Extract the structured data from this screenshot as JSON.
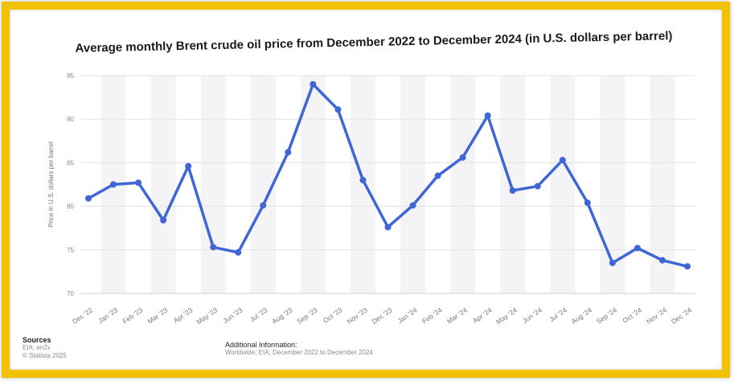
{
  "chart_data": {
    "type": "line",
    "title": "Average monthly Brent crude oil price from December 2022 to December 2024 (in U.S. dollars per barrel)",
    "ylabel": "Price in U.S. dollars per barrel",
    "xlabel": "",
    "ylim": [
      70,
      95
    ],
    "yticks": [
      70,
      75,
      80,
      85,
      90,
      95
    ],
    "grid": true,
    "color": "#3f66d6",
    "categories": [
      "Dec '22",
      "Jan '23",
      "Feb '23",
      "Mar '23",
      "Apr '23",
      "May '23",
      "Jun '23",
      "Jul '23",
      "Aug '23",
      "Sep '23",
      "Oct '23",
      "Nov '23",
      "Dec '23",
      "Jan '24",
      "Feb '24",
      "Mar '24",
      "Apr '24",
      "May '24",
      "Jun '24",
      "Jul '24",
      "Aug '24",
      "Sep '24",
      "Oct '24",
      "Nov '24",
      "Dec '24"
    ],
    "values": [
      80.9,
      82.5,
      82.7,
      78.4,
      84.6,
      75.3,
      74.7,
      80.1,
      86.2,
      94.0,
      91.1,
      83.0,
      77.6,
      80.1,
      83.5,
      85.6,
      90.4,
      81.8,
      82.3,
      85.3,
      80.4,
      73.5,
      75.2,
      73.8,
      73.1
    ]
  },
  "footer": {
    "sources_heading": "Sources",
    "sources_lines": [
      "EIA; en2x",
      "© Statista 2025"
    ],
    "additional_heading": "Additional Information:",
    "additional_text": "Worldwide; EIA; December 2022 to December 2024"
  }
}
